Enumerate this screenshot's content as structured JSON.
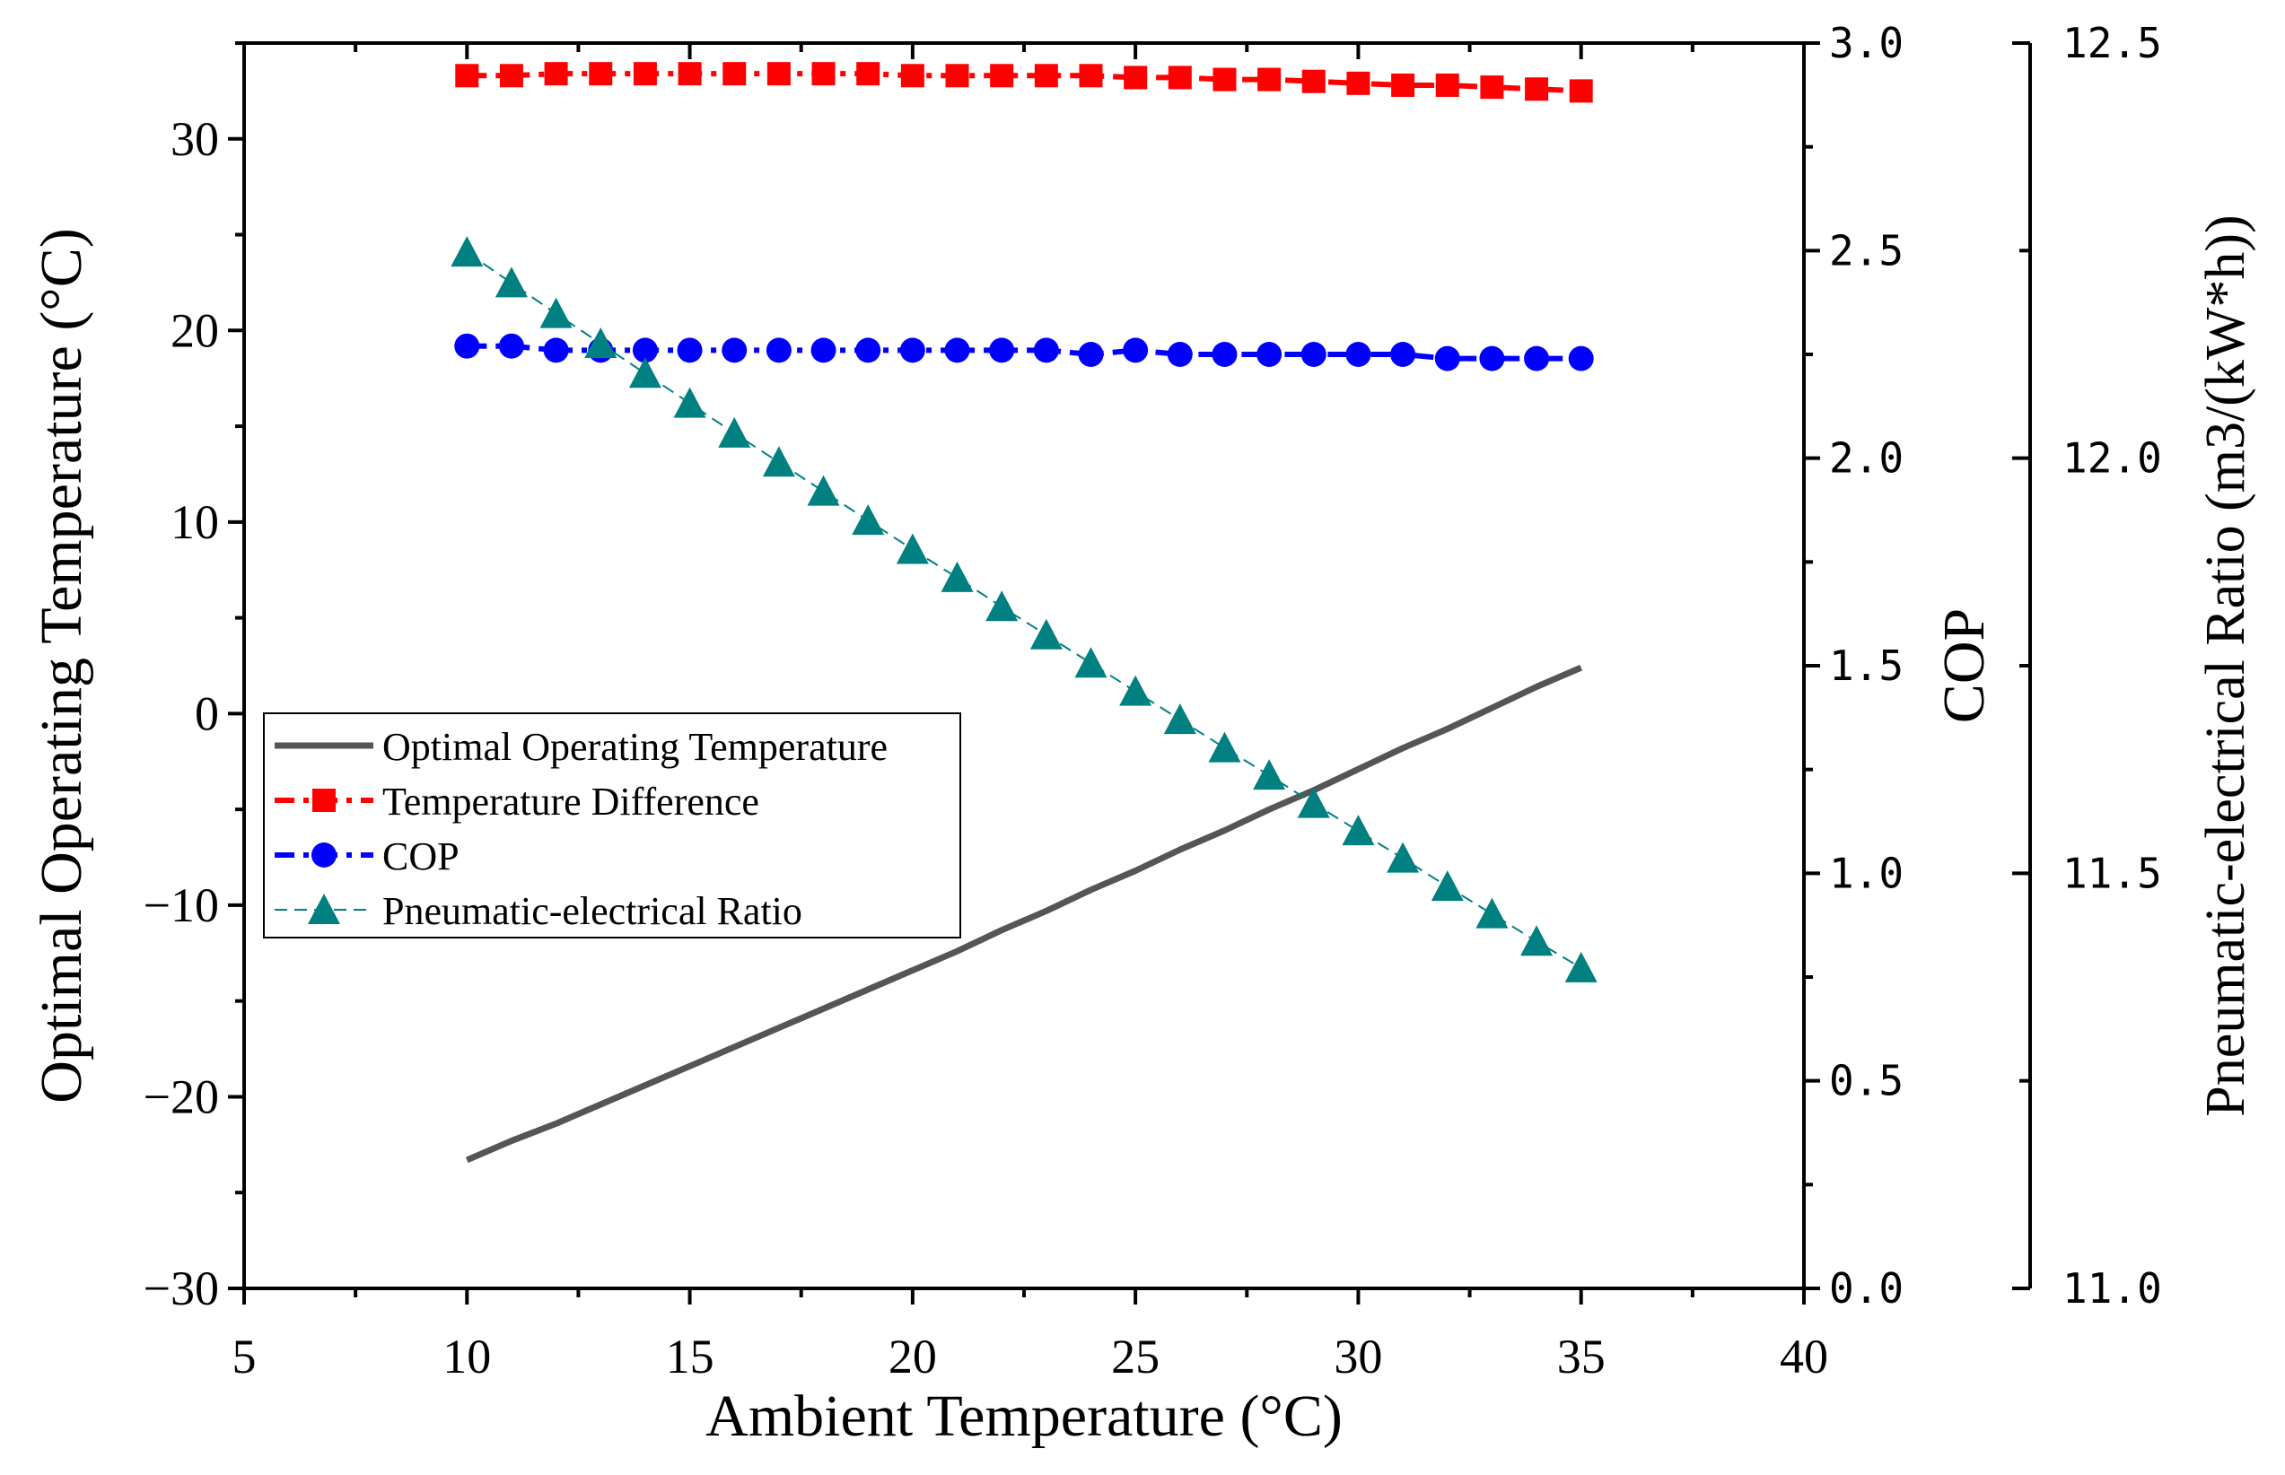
{
  "chart_data": {
    "type": "line",
    "title": "",
    "xlabel": "Ambient Temperature (°C)",
    "ylabel_left": "Optimal Operating Temperature (°C)",
    "ylabel_right1": "COP",
    "ylabel_right2": "Pneumatic-electrical Ratio (m3/(kW*h))",
    "xlim": [
      5,
      40
    ],
    "ylim_left": [
      -30,
      35
    ],
    "ylim_right1": [
      0,
      3
    ],
    "ylim_right2": [
      11,
      12.5
    ],
    "x_ticks": [
      "5",
      "10",
      "15",
      "20",
      "25",
      "30",
      "35",
      "40"
    ],
    "y_left_ticks": [
      "−30",
      "−20",
      "−10",
      "0",
      "10",
      "20",
      "30"
    ],
    "y_right1_ticks": [
      "0.0",
      "0.5",
      "1.0",
      "1.5",
      "2.0",
      "2.5",
      "3.0"
    ],
    "y_right2_ticks": [
      "11.0",
      "11.5",
      "12.0",
      "12.5"
    ],
    "grid": false,
    "legend_position": "center-left",
    "x": [
      10,
      11,
      12,
      13,
      14,
      15,
      16,
      17,
      18,
      19,
      20,
      21,
      22,
      23,
      24,
      25,
      26,
      27,
      28,
      29,
      30,
      31,
      32,
      33,
      34,
      35
    ],
    "series": [
      {
        "name": "Optimal Operating Temperature",
        "axis": "left",
        "color": "#555555",
        "style": "solid",
        "marker": "none",
        "values": [
          -23.3,
          -22.3,
          -21.4,
          -20.4,
          -19.4,
          -18.4,
          -17.4,
          -16.4,
          -15.4,
          -14.4,
          -13.4,
          -12.4,
          -11.3,
          -10.3,
          -9.2,
          -8.2,
          -7.1,
          -6.1,
          -5.0,
          -4.0,
          -2.9,
          -1.8,
          -0.8,
          0.3,
          1.4,
          2.4
        ]
      },
      {
        "name": "Temperature Difference",
        "axis": "left",
        "color": "#ff0000",
        "style": "dash-dot",
        "marker": "square",
        "values": [
          33.3,
          33.3,
          33.4,
          33.4,
          33.4,
          33.4,
          33.4,
          33.4,
          33.4,
          33.4,
          33.3,
          33.3,
          33.3,
          33.3,
          33.3,
          33.2,
          33.2,
          33.1,
          33.1,
          33.0,
          32.9,
          32.8,
          32.8,
          32.7,
          32.6,
          32.5
        ]
      },
      {
        "name": "COP",
        "axis": "right1",
        "color": "#0000ff",
        "style": "dash-dot",
        "marker": "circle",
        "values": [
          2.27,
          2.27,
          2.26,
          2.26,
          2.26,
          2.26,
          2.26,
          2.26,
          2.26,
          2.26,
          2.26,
          2.26,
          2.26,
          2.26,
          2.25,
          2.26,
          2.25,
          2.25,
          2.25,
          2.25,
          2.25,
          2.25,
          2.24,
          2.24,
          2.24,
          2.24
        ]
      },
      {
        "name": "Pneumatic-electrical Ratio",
        "axis": "right2",
        "color": "#008080",
        "style": "dashed-thin",
        "marker": "triangle",
        "values": [
          12.248,
          12.211,
          12.174,
          12.138,
          12.102,
          12.066,
          12.03,
          11.995,
          11.96,
          11.925,
          11.89,
          11.856,
          11.821,
          11.787,
          11.753,
          11.719,
          11.685,
          11.651,
          11.618,
          11.584,
          11.551,
          11.518,
          11.484,
          11.451,
          11.418,
          11.386
        ]
      }
    ]
  }
}
